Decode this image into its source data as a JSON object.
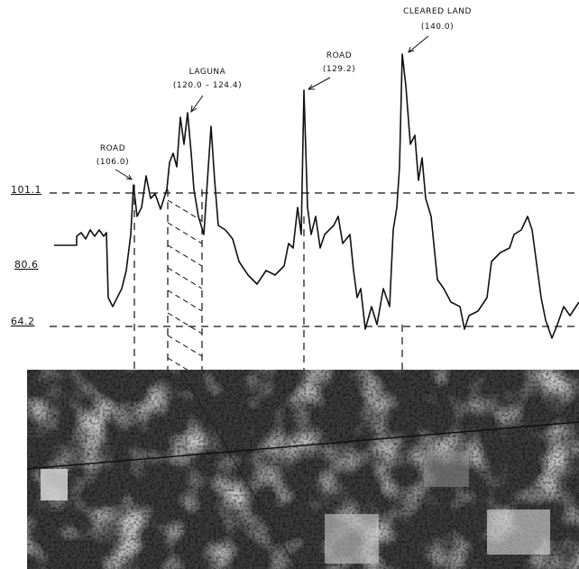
{
  "levels": [
    "101.1",
    "80.6",
    "64.2"
  ],
  "annotations": [
    {
      "label": "ROAD",
      "value": "(106.0)"
    },
    {
      "label": "LAGUNA",
      "value": "(120.0 – 124.4)"
    },
    {
      "label": "ROAD",
      "value": "(129.2)"
    },
    {
      "label": "CLEARED  LAND",
      "value": "(140.0)"
    }
  ]
}
